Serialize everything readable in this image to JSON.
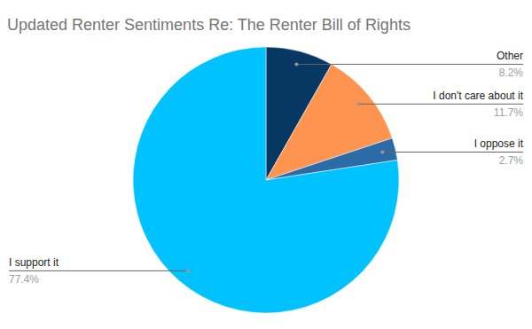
{
  "chart_data": {
    "type": "pie",
    "title": "Updated Renter Sentiments Re: The Renter Bill of Rights",
    "categories": [
      "Other",
      "I don't care about it",
      "I oppose it",
      "I support it"
    ],
    "values": [
      8.2,
      11.7,
      2.7,
      77.4
    ],
    "value_labels": [
      "8.2%",
      "11.7%",
      "2.7%",
      "77.4%"
    ],
    "colors": [
      "#073763",
      "#ff9350",
      "#2b6ca8",
      "#00c2ff"
    ],
    "data_labels": true
  }
}
